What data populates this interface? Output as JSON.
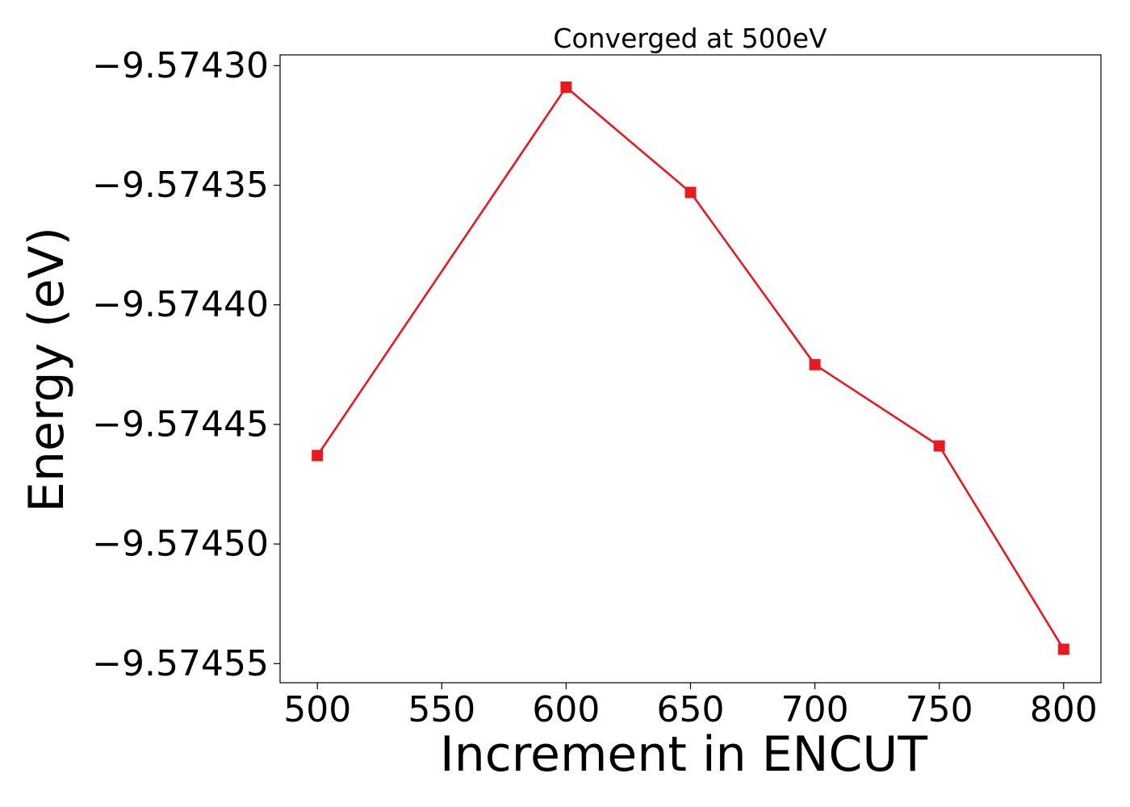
{
  "chart_data": {
    "type": "line",
    "title": "Converged at 500eV",
    "xlabel": "Increment in ENCUT",
    "ylabel": "Energy (eV)",
    "x": [
      500,
      600,
      650,
      700,
      750,
      800
    ],
    "series": [
      {
        "values": [
          -9.574463,
          -9.574309,
          -9.574353,
          -9.574425,
          -9.574459,
          -9.574544
        ],
        "color": "#e8191f",
        "marker": "square"
      }
    ],
    "xticks": [
      500,
      550,
      600,
      650,
      700,
      750,
      800
    ],
    "xtick_labels": [
      "500",
      "550",
      "600",
      "650",
      "700",
      "750",
      "800"
    ],
    "yticks": [
      -9.5743,
      -9.57435,
      -9.5744,
      -9.57445,
      -9.5745,
      -9.57455
    ],
    "ytick_labels": [
      "−9.57430",
      "−9.57435",
      "−9.57440",
      "−9.57445",
      "−9.57450",
      "−9.57455"
    ],
    "xlim": [
      485,
      815
    ],
    "ylim": [
      -9.574558,
      -9.5742955
    ],
    "grid": false,
    "legend": false
  }
}
